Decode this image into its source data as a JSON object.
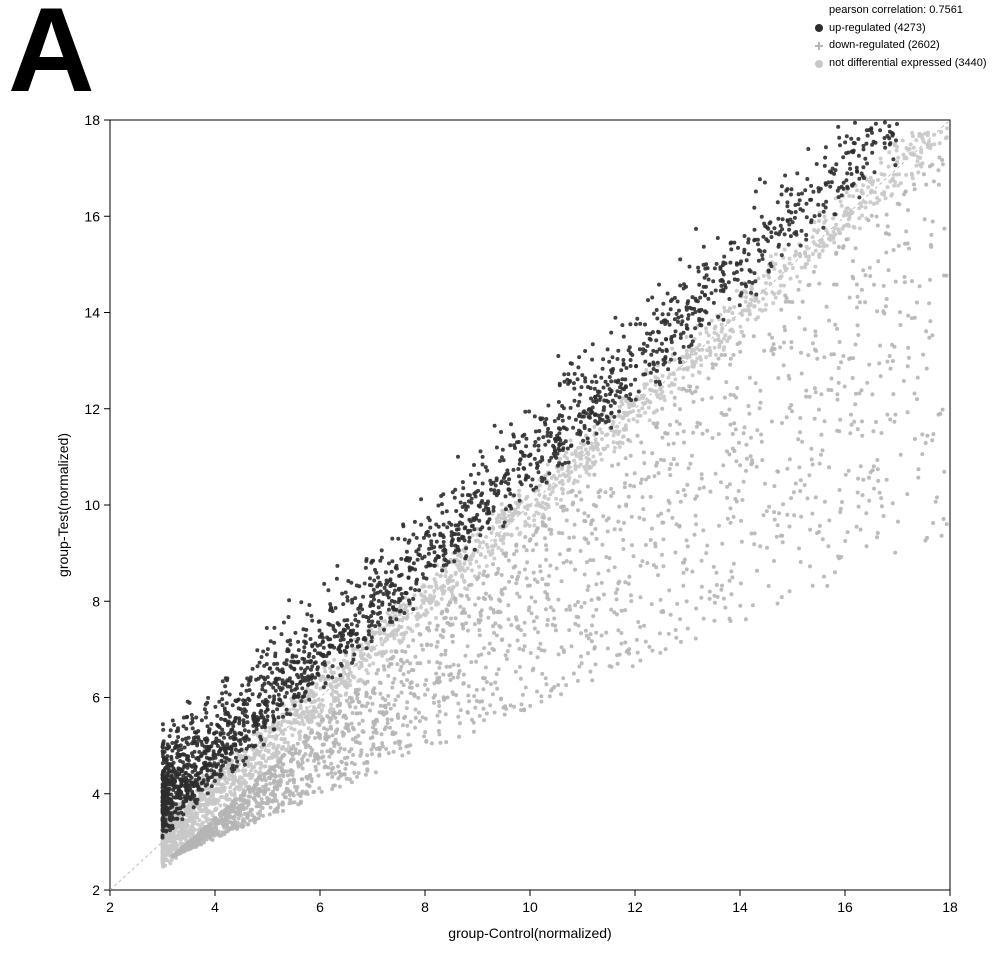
{
  "panel_label": "A",
  "legend": {
    "correlation_line": "pearson correlation: 0.7561",
    "items": [
      {
        "label": "up-regulated (4273)",
        "color": "#2d2d2d",
        "marker": "circle"
      },
      {
        "label": "down-regulated (2602)",
        "color": "#b5b5b5",
        "marker": "plus"
      },
      {
        "label": "not differential expressed (3440)",
        "color": "#c8c8c8",
        "marker": "circle"
      }
    ]
  },
  "scatter": {
    "type": "scatter",
    "xlabel": "group-Control(normalized)",
    "ylabel": "group-Test(normalized)",
    "xlim": [
      2,
      18
    ],
    "ylim": [
      2,
      18
    ],
    "xtick_step": 2,
    "ytick_step": 2,
    "label_fontsize": 14,
    "tick_fontsize": 14,
    "background_color": "#ffffff",
    "plot_border_color": "#000000",
    "diagonal_line": {
      "show": true,
      "color": "#bbbbbb",
      "dash": "3 3",
      "width": 1
    },
    "marker_radius": 2.0,
    "marker_opacity": 0.9,
    "series": [
      {
        "name": "not_diff",
        "color": "#c8c8c8",
        "count_target": 3440,
        "generator": {
          "kind": "diagonal_band",
          "x_range": [
            3.0,
            18.0
          ],
          "x_bias_low": 2.2,
          "band_halfwidth": 0.45,
          "y_jitter": 0.35
        }
      },
      {
        "name": "down",
        "color": "#b5b5b5",
        "count_target": 2602,
        "generator": {
          "kind": "below_diagonal_cloud",
          "x_range": [
            3.2,
            18.0
          ],
          "x_bias_low": 1.6,
          "min_offset": 0.5,
          "max_offset_scale": 0.55,
          "bottom_floor": 2.3
        }
      },
      {
        "name": "up",
        "color": "#2d2d2d",
        "count_target": 4273,
        "generator": {
          "kind": "above_diagonal_band",
          "x_range": [
            3.0,
            17.0
          ],
          "x_bias_low": 2.0,
          "min_offset": 0.35,
          "max_offset": 2.4,
          "spread_scale": 0.35,
          "top_ceiling": 18.0
        }
      }
    ]
  }
}
